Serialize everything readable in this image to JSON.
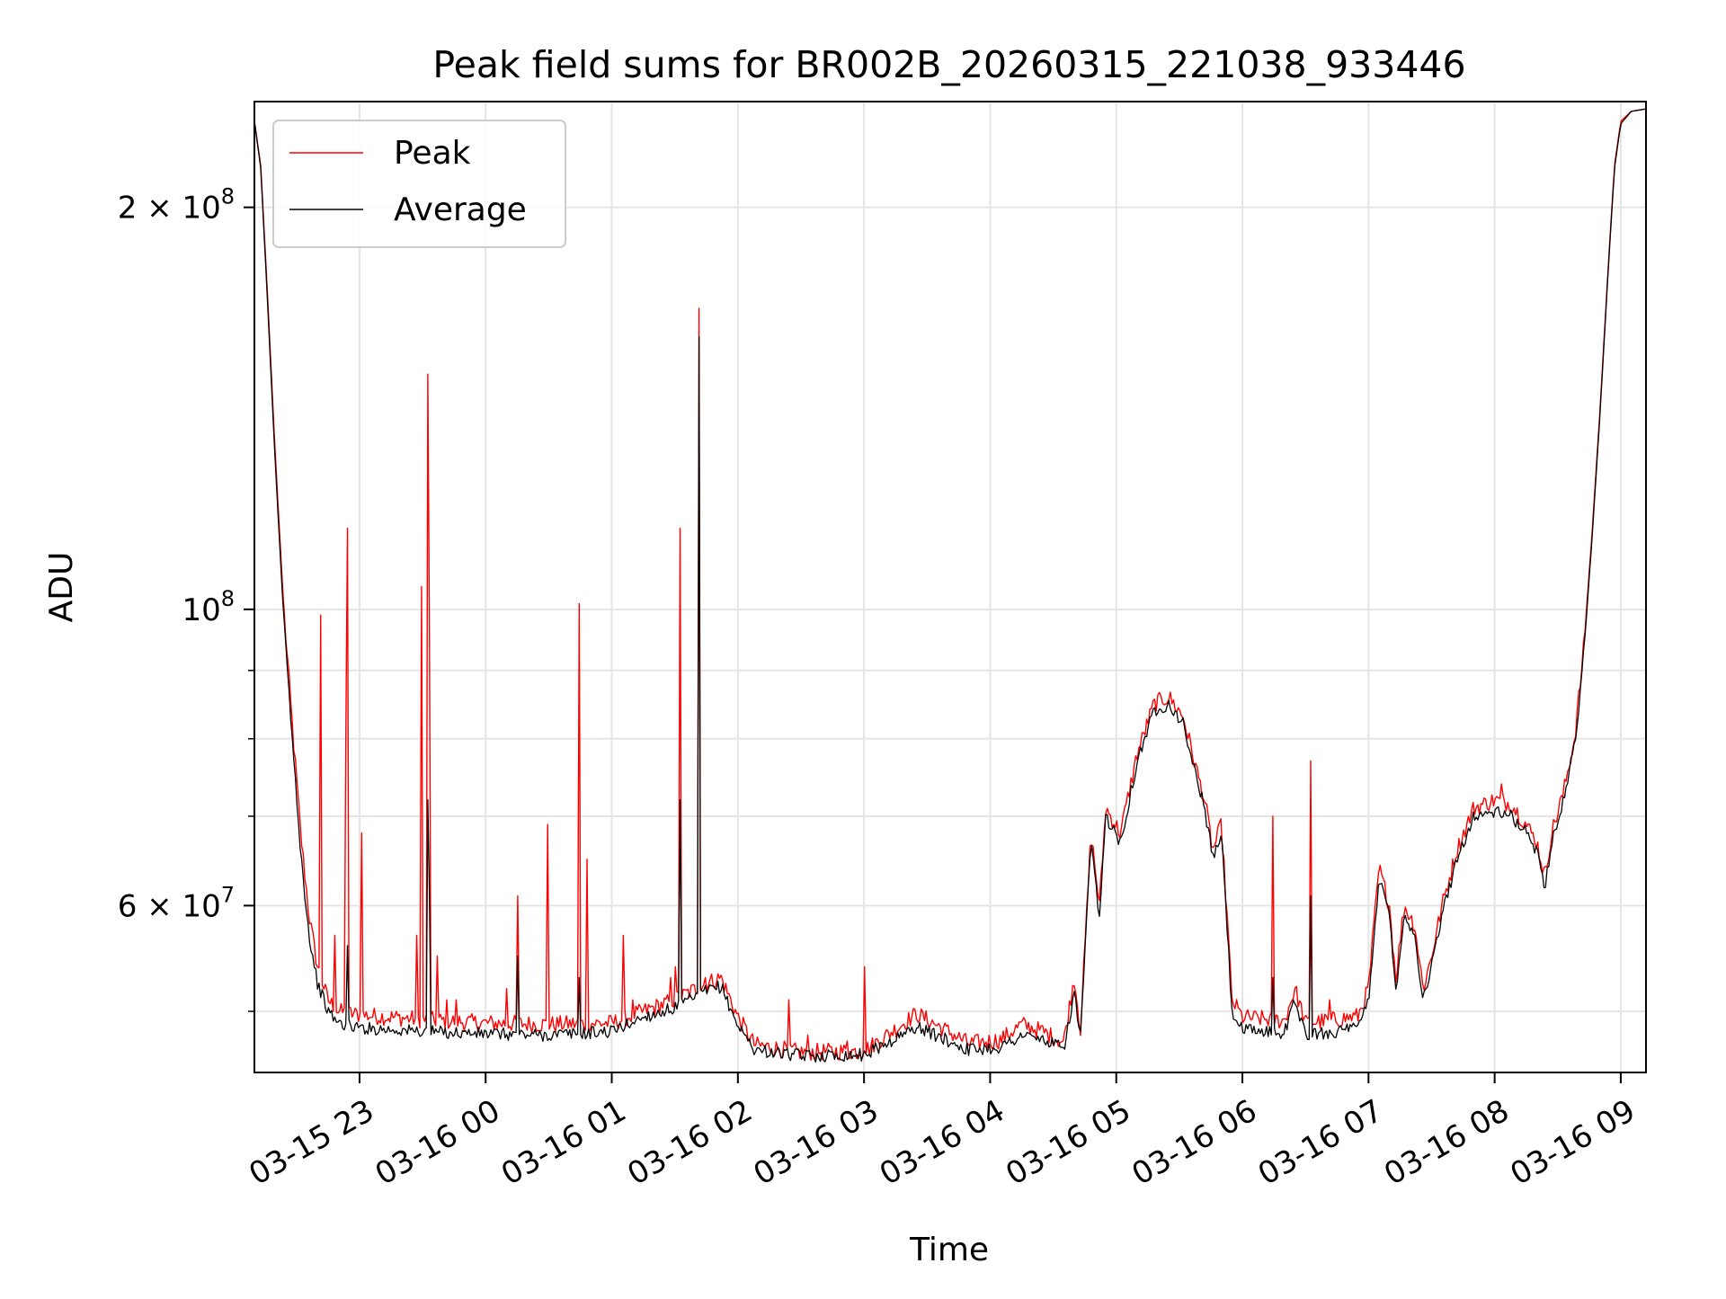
{
  "chart_data": {
    "type": "line",
    "title": "Peak field sums for BR002B_20260315_221038_933446",
    "xlabel": "Time",
    "ylabel": "ADU",
    "x_range": [
      "2026-03-15 22:10",
      "2026-03-16 09:12"
    ],
    "y_range": [
      45000000,
      240000000
    ],
    "y_scale": "log",
    "grid": true,
    "legend": "upper-left",
    "x_ticks": [
      {
        "t": "2026-03-15 23:00",
        "label": "03-15 23"
      },
      {
        "t": "2026-03-16 00:00",
        "label": "03-16 00"
      },
      {
        "t": "2026-03-16 01:00",
        "label": "03-16 01"
      },
      {
        "t": "2026-03-16 02:00",
        "label": "03-16 02"
      },
      {
        "t": "2026-03-16 03:00",
        "label": "03-16 03"
      },
      {
        "t": "2026-03-16 04:00",
        "label": "03-16 04"
      },
      {
        "t": "2026-03-16 05:00",
        "label": "03-16 05"
      },
      {
        "t": "2026-03-16 06:00",
        "label": "03-16 06"
      },
      {
        "t": "2026-03-16 07:00",
        "label": "03-16 07"
      },
      {
        "t": "2026-03-16 08:00",
        "label": "03-16 08"
      },
      {
        "t": "2026-03-16 09:00",
        "label": "03-16 09"
      }
    ],
    "y_ticks_major": [
      {
        "value": 100000000,
        "base": "10",
        "exp": "8"
      },
      {
        "value": 200000000,
        "base": "2 × 10",
        "exp": "8"
      },
      {
        "value": 60000000,
        "base": "6 × 10",
        "exp": "7"
      }
    ],
    "y_ticks_minor": [
      50000000,
      70000000,
      80000000,
      90000000
    ],
    "colors": {
      "peak": "#ff0000",
      "average": "#000000",
      "grid": "#e5e5e5"
    },
    "series": [
      {
        "name": "Peak",
        "color": "#ff0000",
        "points": [
          [
            "2026-03-15 22:10",
            232000000
          ],
          [
            "2026-03-15 22:13",
            215000000
          ],
          [
            "2026-03-15 22:16",
            175000000
          ],
          [
            "2026-03-15 22:20",
            130000000
          ],
          [
            "2026-03-15 22:24",
            100000000
          ],
          [
            "2026-03-15 22:28",
            82000000
          ],
          [
            "2026-03-15 22:32",
            68000000
          ],
          [
            "2026-03-15 22:36",
            59000000
          ],
          [
            "2026-03-15 22:40",
            54000000
          ],
          [
            "2026-03-15 22:45",
            51000000
          ],
          [
            "2026-03-15 22:50",
            50000000
          ],
          [
            "2026-03-15 23:00",
            49700000
          ],
          [
            "2026-03-15 23:30",
            49300000
          ],
          [
            "2026-03-16 00:00",
            49000000
          ],
          [
            "2026-03-16 00:30",
            48900000
          ],
          [
            "2026-03-16 01:00",
            49000000
          ],
          [
            "2026-03-16 01:15",
            50000000
          ],
          [
            "2026-03-16 01:30",
            51000000
          ],
          [
            "2026-03-16 01:45",
            52500000
          ],
          [
            "2026-03-16 01:52",
            53000000
          ],
          [
            "2026-03-16 02:00",
            49500000
          ],
          [
            "2026-03-16 02:08",
            47200000
          ],
          [
            "2026-03-16 02:30",
            46600000
          ],
          [
            "2026-03-16 03:00",
            46700000
          ],
          [
            "2026-03-16 03:15",
            48500000
          ],
          [
            "2026-03-16 03:25",
            49800000
          ],
          [
            "2026-03-16 03:35",
            48800000
          ],
          [
            "2026-03-16 03:50",
            47300000
          ],
          [
            "2026-03-16 04:05",
            47600000
          ],
          [
            "2026-03-16 04:15",
            48900000
          ],
          [
            "2026-03-16 04:25",
            48300000
          ],
          [
            "2026-03-16 04:35",
            47400000
          ],
          [
            "2026-03-16 04:40",
            53000000
          ],
          [
            "2026-03-16 04:43",
            48500000
          ],
          [
            "2026-03-16 04:48",
            68000000
          ],
          [
            "2026-03-16 04:52",
            60000000
          ],
          [
            "2026-03-16 04:55",
            71000000
          ],
          [
            "2026-03-16 05:02",
            68000000
          ],
          [
            "2026-03-16 05:10",
            78000000
          ],
          [
            "2026-03-16 05:18",
            85000000
          ],
          [
            "2026-03-16 05:25",
            86000000
          ],
          [
            "2026-03-16 05:32",
            83000000
          ],
          [
            "2026-03-16 05:38",
            76000000
          ],
          [
            "2026-03-16 05:42",
            72000000
          ],
          [
            "2026-03-16 05:46",
            66000000
          ],
          [
            "2026-03-16 05:50",
            69000000
          ],
          [
            "2026-03-16 05:53",
            58000000
          ],
          [
            "2026-03-16 05:55",
            51000000
          ],
          [
            "2026-03-16 06:00",
            49500000
          ],
          [
            "2026-03-16 06:20",
            49200000
          ],
          [
            "2026-03-16 06:25",
            52000000
          ],
          [
            "2026-03-16 06:30",
            49000000
          ],
          [
            "2026-03-16 06:45",
            49300000
          ],
          [
            "2026-03-16 06:55",
            49600000
          ],
          [
            "2026-03-16 07:00",
            52000000
          ],
          [
            "2026-03-16 07:05",
            64000000
          ],
          [
            "2026-03-16 07:10",
            60000000
          ],
          [
            "2026-03-16 07:13",
            53000000
          ],
          [
            "2026-03-16 07:17",
            60000000
          ],
          [
            "2026-03-16 07:22",
            58000000
          ],
          [
            "2026-03-16 07:26",
            52000000
          ],
          [
            "2026-03-16 07:30",
            55000000
          ],
          [
            "2026-03-16 07:35",
            60000000
          ],
          [
            "2026-03-16 07:42",
            66000000
          ],
          [
            "2026-03-16 07:50",
            71000000
          ],
          [
            "2026-03-16 08:00",
            72000000
          ],
          [
            "2026-03-16 08:08",
            71500000
          ],
          [
            "2026-03-16 08:15",
            69000000
          ],
          [
            "2026-03-16 08:20",
            67000000
          ],
          [
            "2026-03-16 08:24",
            63000000
          ],
          [
            "2026-03-16 08:27",
            68000000
          ],
          [
            "2026-03-16 08:32",
            72000000
          ],
          [
            "2026-03-16 08:38",
            80000000
          ],
          [
            "2026-03-16 08:42",
            92000000
          ],
          [
            "2026-03-16 08:46",
            112000000
          ],
          [
            "2026-03-16 08:50",
            140000000
          ],
          [
            "2026-03-16 08:54",
            180000000
          ],
          [
            "2026-03-16 08:57",
            215000000
          ],
          [
            "2026-03-16 09:00",
            232000000
          ],
          [
            "2026-03-16 09:05",
            236000000
          ],
          [
            "2026-03-16 09:12",
            237000000
          ]
        ],
        "spikes": [
          [
            "2026-03-15 22:41",
            99000000
          ],
          [
            "2026-03-15 22:48",
            57000000
          ],
          [
            "2026-03-15 22:53",
            80000000
          ],
          [
            "2026-03-15 22:54",
            115000000
          ],
          [
            "2026-03-15 23:01",
            68000000
          ],
          [
            "2026-03-15 23:27",
            57000000
          ],
          [
            "2026-03-15 23:29",
            104000000
          ],
          [
            "2026-03-15 23:32",
            150000000
          ],
          [
            "2026-03-15 23:33",
            96000000
          ],
          [
            "2026-03-15 23:37",
            55000000
          ],
          [
            "2026-03-15 23:41",
            51000000
          ],
          [
            "2026-03-15 23:46",
            51000000
          ],
          [
            "2026-03-16 00:10",
            52000000
          ],
          [
            "2026-03-16 00:15",
            61000000
          ],
          [
            "2026-03-16 00:29",
            69000000
          ],
          [
            "2026-03-16 00:44",
            101000000
          ],
          [
            "2026-03-16 00:48",
            65000000
          ],
          [
            "2026-03-16 01:05",
            57000000
          ],
          [
            "2026-03-16 01:10",
            51000000
          ],
          [
            "2026-03-16 01:28",
            53000000
          ],
          [
            "2026-03-16 01:30",
            54000000
          ],
          [
            "2026-03-16 01:32",
            115000000
          ],
          [
            "2026-03-16 01:41",
            168000000
          ],
          [
            "2026-03-16 01:44",
            53000000
          ],
          [
            "2026-03-16 02:24",
            51000000
          ],
          [
            "2026-03-16 02:33",
            48000000
          ],
          [
            "2026-03-16 02:52",
            47500000
          ],
          [
            "2026-03-16 03:00",
            54000000
          ],
          [
            "2026-03-16 06:14",
            70000000
          ],
          [
            "2026-03-16 06:32",
            77000000
          ],
          [
            "2026-03-16 06:41",
            51000000
          ],
          [
            "2026-03-16 08:03",
            74000000
          ],
          [
            "2026-03-16 08:31",
            72000000
          ]
        ]
      },
      {
        "name": "Average",
        "color": "#000000",
        "points": [
          [
            "2026-03-15 22:10",
            232000000
          ],
          [
            "2026-03-15 22:13",
            214000000
          ],
          [
            "2026-03-15 22:16",
            173000000
          ],
          [
            "2026-03-15 22:20",
            128000000
          ],
          [
            "2026-03-15 22:24",
            98000000
          ],
          [
            "2026-03-15 22:28",
            80000000
          ],
          [
            "2026-03-15 22:32",
            66000000
          ],
          [
            "2026-03-15 22:36",
            57000000
          ],
          [
            "2026-03-15 22:40",
            52500000
          ],
          [
            "2026-03-15 22:45",
            50000000
          ],
          [
            "2026-03-15 22:50",
            49000000
          ],
          [
            "2026-03-15 23:00",
            48600000
          ],
          [
            "2026-03-15 23:30",
            48300000
          ],
          [
            "2026-03-16 00:00",
            48100000
          ],
          [
            "2026-03-16 00:30",
            48000000
          ],
          [
            "2026-03-16 01:00",
            48300000
          ],
          [
            "2026-03-16 01:15",
            49500000
          ],
          [
            "2026-03-16 01:30",
            50300000
          ],
          [
            "2026-03-16 01:45",
            51800000
          ],
          [
            "2026-03-16 01:52",
            52200000
          ],
          [
            "2026-03-16 02:00",
            48800000
          ],
          [
            "2026-03-16 02:08",
            46800000
          ],
          [
            "2026-03-16 02:30",
            46300000
          ],
          [
            "2026-03-16 03:00",
            46400000
          ],
          [
            "2026-03-16 03:15",
            47700000
          ],
          [
            "2026-03-16 03:25",
            48700000
          ],
          [
            "2026-03-16 03:35",
            47900000
          ],
          [
            "2026-03-16 03:50",
            46800000
          ],
          [
            "2026-03-16 04:05",
            47000000
          ],
          [
            "2026-03-16 04:15",
            48000000
          ],
          [
            "2026-03-16 04:25",
            47600000
          ],
          [
            "2026-03-16 04:35",
            46900000
          ],
          [
            "2026-03-16 04:40",
            51500000
          ],
          [
            "2026-03-16 04:43",
            48000000
          ],
          [
            "2026-03-16 04:48",
            67000000
          ],
          [
            "2026-03-16 04:52",
            58500000
          ],
          [
            "2026-03-16 04:55",
            70000000
          ],
          [
            "2026-03-16 05:02",
            67000000
          ],
          [
            "2026-03-16 05:10",
            77000000
          ],
          [
            "2026-03-16 05:18",
            84000000
          ],
          [
            "2026-03-16 05:25",
            85000000
          ],
          [
            "2026-03-16 05:32",
            82000000
          ],
          [
            "2026-03-16 05:38",
            75000000
          ],
          [
            "2026-03-16 05:42",
            71000000
          ],
          [
            "2026-03-16 05:46",
            65000000
          ],
          [
            "2026-03-16 05:50",
            68000000
          ],
          [
            "2026-03-16 05:53",
            57000000
          ],
          [
            "2026-03-16 05:55",
            50000000
          ],
          [
            "2026-03-16 06:00",
            48400000
          ],
          [
            "2026-03-16 06:20",
            48200000
          ],
          [
            "2026-03-16 06:25",
            51000000
          ],
          [
            "2026-03-16 06:30",
            48000000
          ],
          [
            "2026-03-16 06:45",
            48300000
          ],
          [
            "2026-03-16 06:55",
            48600000
          ],
          [
            "2026-03-16 07:00",
            51000000
          ],
          [
            "2026-03-16 07:05",
            63000000
          ],
          [
            "2026-03-16 07:10",
            59000000
          ],
          [
            "2026-03-16 07:13",
            52000000
          ],
          [
            "2026-03-16 07:17",
            59000000
          ],
          [
            "2026-03-16 07:22",
            57000000
          ],
          [
            "2026-03-16 07:26",
            51000000
          ],
          [
            "2026-03-16 07:30",
            54000000
          ],
          [
            "2026-03-16 07:35",
            59000000
          ],
          [
            "2026-03-16 07:42",
            65000000
          ],
          [
            "2026-03-16 07:50",
            70000000
          ],
          [
            "2026-03-16 08:00",
            70500000
          ],
          [
            "2026-03-16 08:08",
            70000000
          ],
          [
            "2026-03-16 08:15",
            68000000
          ],
          [
            "2026-03-16 08:20",
            66000000
          ],
          [
            "2026-03-16 08:24",
            62000000
          ],
          [
            "2026-03-16 08:27",
            67000000
          ],
          [
            "2026-03-16 08:32",
            71000000
          ],
          [
            "2026-03-16 08:38",
            79000000
          ],
          [
            "2026-03-16 08:42",
            91000000
          ],
          [
            "2026-03-16 08:46",
            111000000
          ],
          [
            "2026-03-16 08:50",
            139000000
          ],
          [
            "2026-03-16 08:54",
            179000000
          ],
          [
            "2026-03-16 08:57",
            214000000
          ],
          [
            "2026-03-16 09:00",
            231000000
          ],
          [
            "2026-03-16 09:05",
            236000000
          ],
          [
            "2026-03-16 09:12",
            237000000
          ]
        ],
        "spikes": [
          [
            "2026-03-15 22:54",
            56000000
          ],
          [
            "2026-03-15 23:32",
            72000000
          ],
          [
            "2026-03-15 23:33",
            61000000
          ],
          [
            "2026-03-16 00:15",
            55000000
          ],
          [
            "2026-03-16 00:44",
            53000000
          ],
          [
            "2026-03-16 01:32",
            72000000
          ],
          [
            "2026-03-16 01:41",
            160000000
          ],
          [
            "2026-03-16 06:14",
            53000000
          ],
          [
            "2026-03-16 06:32",
            61000000
          ]
        ]
      }
    ]
  }
}
